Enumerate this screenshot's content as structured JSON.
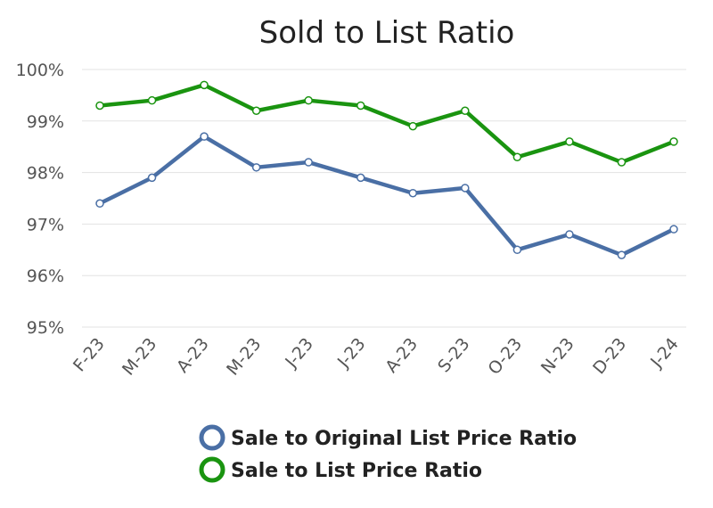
{
  "chart_data": {
    "type": "line",
    "title": "Sold to List Ratio",
    "xlabel": "",
    "ylabel": "",
    "categories": [
      "F-23",
      "M-23",
      "A-23",
      "M-23",
      "J-23",
      "J-23",
      "A-23",
      "S-23",
      "O-23",
      "N-23",
      "D-23",
      "J-24"
    ],
    "ylim": [
      95,
      100
    ],
    "yticks": [
      95,
      96,
      97,
      98,
      99,
      100
    ],
    "ytick_labels": [
      "95%",
      "96%",
      "97%",
      "98%",
      "99%",
      "100%"
    ],
    "grid": true,
    "legend_position": "bottom",
    "series": [
      {
        "name": "Sale to Original List Price Ratio",
        "color": "#4a6fa5",
        "values": [
          97.4,
          97.9,
          98.7,
          98.1,
          98.2,
          97.9,
          97.6,
          97.7,
          96.5,
          96.8,
          96.4,
          96.9
        ]
      },
      {
        "name": "Sale to List Price Ratio",
        "color": "#1a9410",
        "values": [
          99.3,
          99.4,
          99.7,
          99.2,
          99.4,
          99.3,
          98.9,
          99.2,
          98.3,
          98.6,
          98.2,
          98.6
        ]
      }
    ]
  }
}
